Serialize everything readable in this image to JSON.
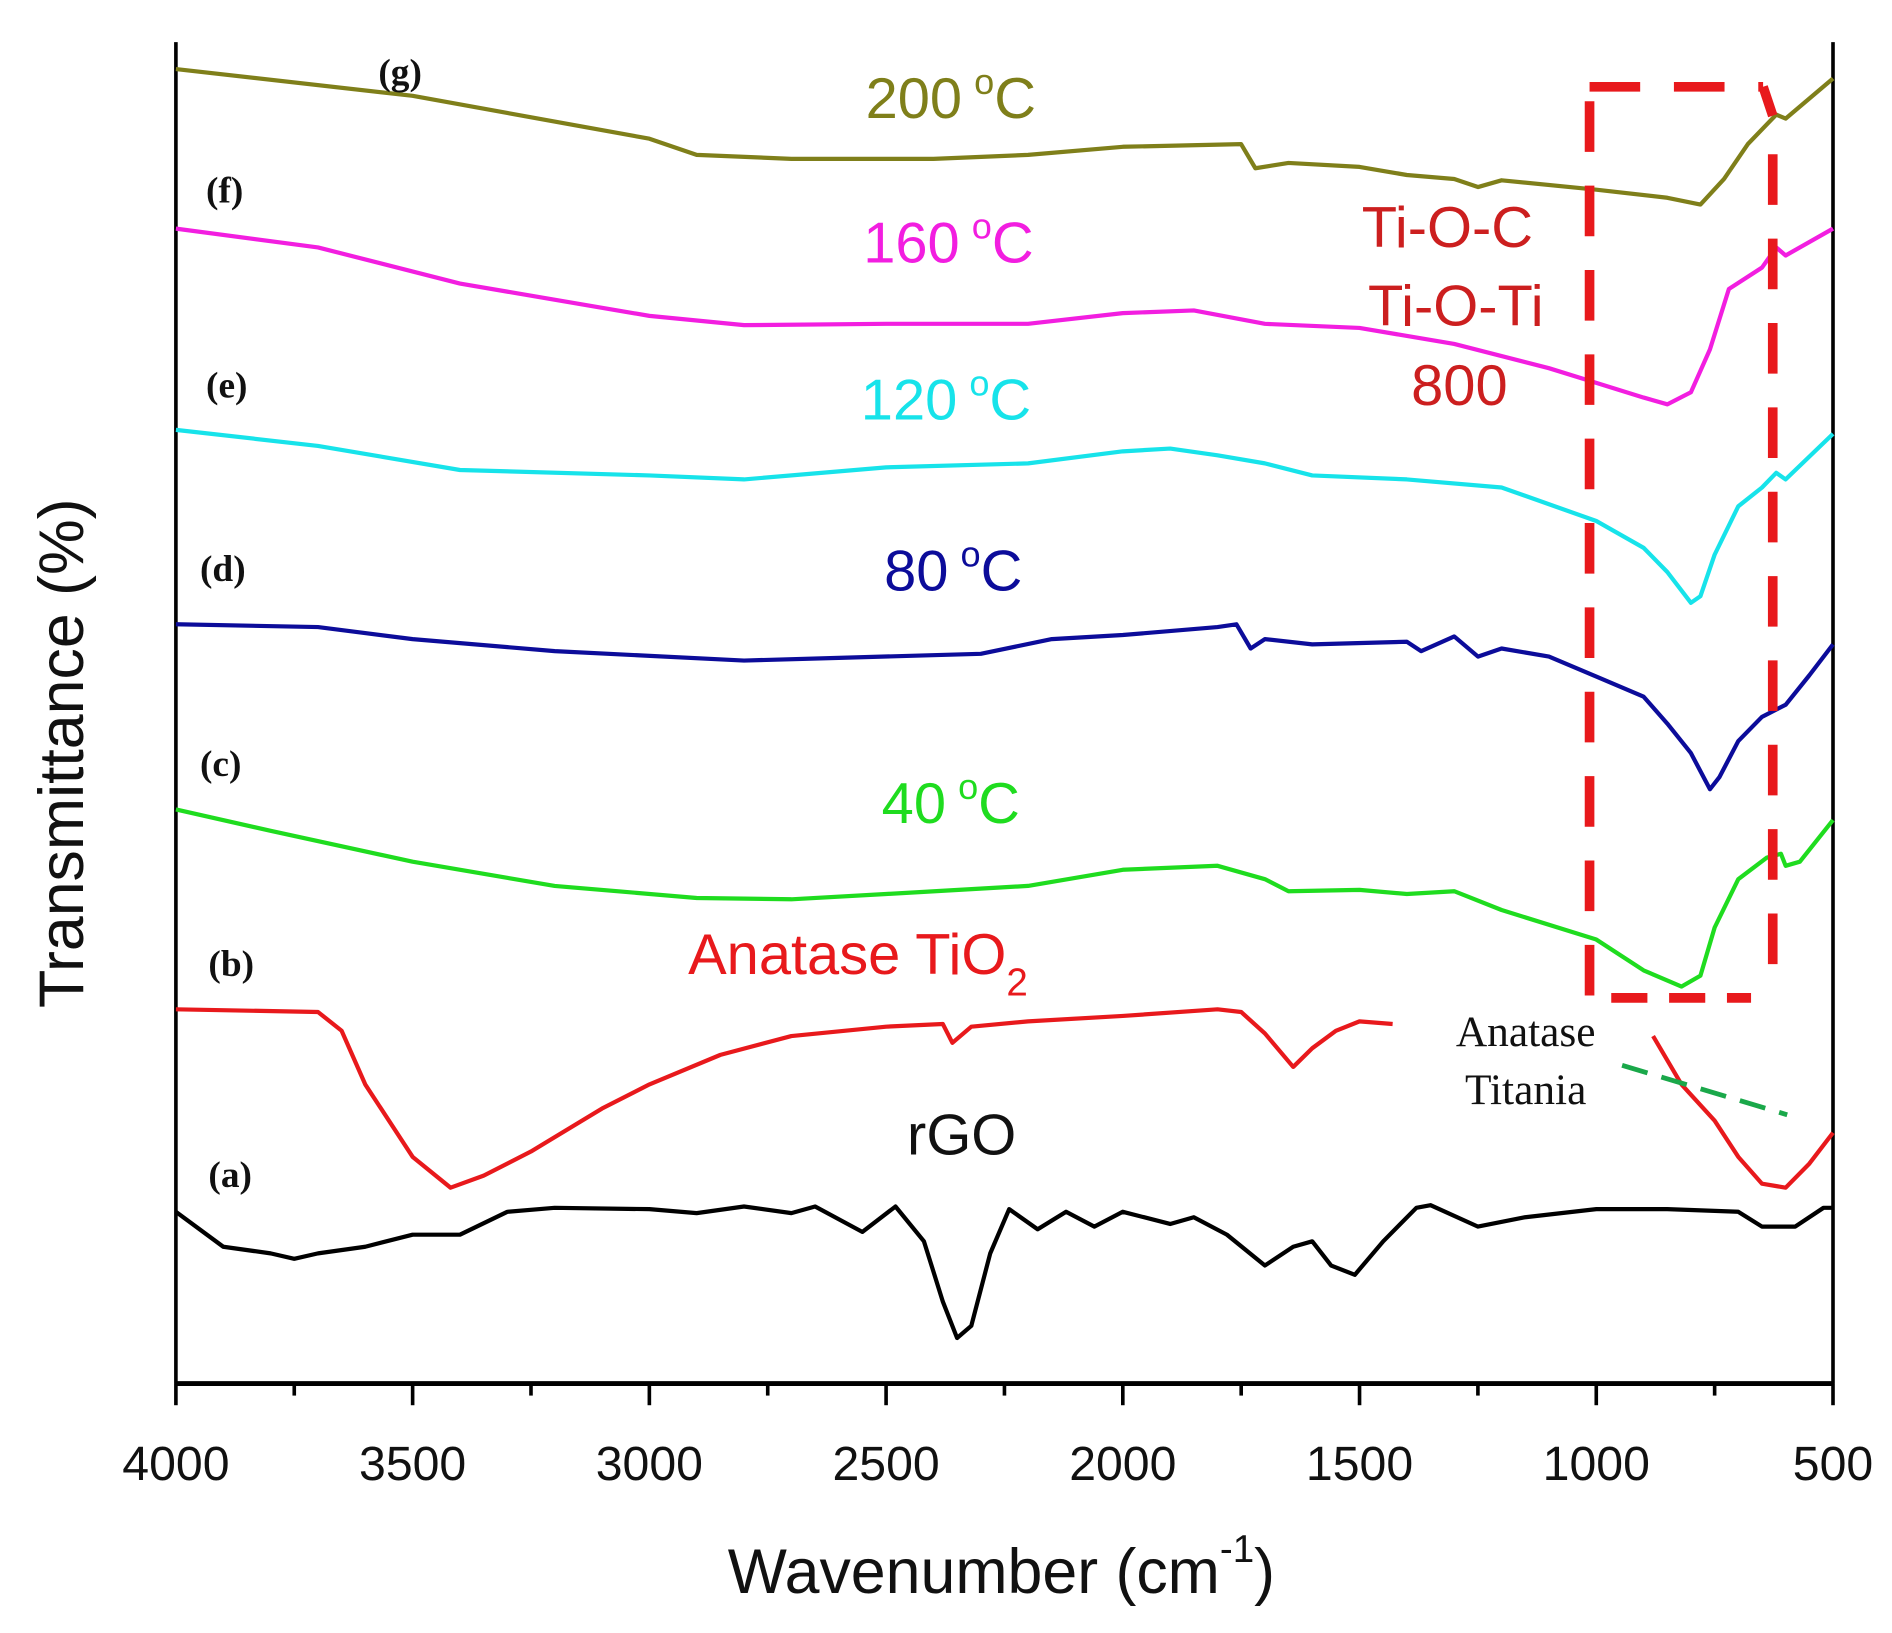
{
  "chart_data": {
    "type": "line",
    "title": "",
    "xlabel": "Wavenumber (cm-1)",
    "xlabel_main": "Wavenumber (cm",
    "xlabel_sup": "-1",
    "xlabel_close": ")",
    "ylabel": "Transmittance (%)",
    "xlim": [
      4000,
      500
    ],
    "ylim": [
      0,
      100
    ],
    "y_units": "arbitrary offset (stacked spectra)",
    "xticks": [
      "4000",
      "3500",
      "3000",
      "2500",
      "2000",
      "1500",
      "1000",
      "500"
    ],
    "grid": false,
    "series": [
      {
        "id": "a",
        "tag": "(a)",
        "name": "rGO",
        "color": "#000000",
        "points": [
          [
            4000,
            12.8
          ],
          [
            3900,
            10.2
          ],
          [
            3800,
            9.7
          ],
          [
            3750,
            9.3
          ],
          [
            3700,
            9.7
          ],
          [
            3600,
            10.2
          ],
          [
            3500,
            11.1
          ],
          [
            3400,
            11.1
          ],
          [
            3300,
            12.8
          ],
          [
            3200,
            13.1
          ],
          [
            3000,
            13.0
          ],
          [
            2900,
            12.7
          ],
          [
            2800,
            13.2
          ],
          [
            2700,
            12.7
          ],
          [
            2650,
            13.2
          ],
          [
            2550,
            11.3
          ],
          [
            2480,
            13.2
          ],
          [
            2420,
            10.6
          ],
          [
            2380,
            6.1
          ],
          [
            2350,
            3.4
          ],
          [
            2320,
            4.3
          ],
          [
            2280,
            9.7
          ],
          [
            2240,
            13.0
          ],
          [
            2180,
            11.5
          ],
          [
            2120,
            12.8
          ],
          [
            2060,
            11.7
          ],
          [
            2000,
            12.8
          ],
          [
            1900,
            11.9
          ],
          [
            1850,
            12.4
          ],
          [
            1780,
            11.1
          ],
          [
            1700,
            8.8
          ],
          [
            1640,
            10.2
          ],
          [
            1600,
            10.6
          ],
          [
            1560,
            8.8
          ],
          [
            1510,
            8.1
          ],
          [
            1450,
            10.6
          ],
          [
            1380,
            13.1
          ],
          [
            1350,
            13.3
          ],
          [
            1250,
            11.7
          ],
          [
            1150,
            12.4
          ],
          [
            1000,
            13.0
          ],
          [
            850,
            13.0
          ],
          [
            700,
            12.8
          ],
          [
            650,
            11.7
          ],
          [
            580,
            11.7
          ],
          [
            520,
            13.1
          ],
          [
            500,
            13.1
          ]
        ]
      },
      {
        "id": "b",
        "tag": "(b)",
        "name": "Anatase TiO2",
        "name_main": "Anatase TiO",
        "name_sub": "2",
        "color": "#e8191c",
        "points": [
          [
            4000,
            27.9
          ],
          [
            3700,
            27.7
          ],
          [
            3650,
            26.3
          ],
          [
            3600,
            22.3
          ],
          [
            3500,
            16.9
          ],
          [
            3420,
            14.6
          ],
          [
            3350,
            15.5
          ],
          [
            3250,
            17.3
          ],
          [
            3100,
            20.5
          ],
          [
            3000,
            22.3
          ],
          [
            2850,
            24.5
          ],
          [
            2700,
            25.9
          ],
          [
            2500,
            26.6
          ],
          [
            2380,
            26.8
          ],
          [
            2360,
            25.4
          ],
          [
            2320,
            26.6
          ],
          [
            2200,
            27.0
          ],
          [
            2000,
            27.4
          ],
          [
            1800,
            27.9
          ],
          [
            1750,
            27.7
          ],
          [
            1700,
            26.1
          ],
          [
            1640,
            23.6
          ],
          [
            1600,
            25.0
          ],
          [
            1550,
            26.3
          ],
          [
            1500,
            27.0
          ],
          [
            1430,
            26.8
          ],
          null,
          [
            880,
            25.9
          ],
          [
            820,
            22.3
          ],
          [
            750,
            19.6
          ],
          [
            700,
            16.9
          ],
          [
            650,
            14.9
          ],
          [
            600,
            14.6
          ],
          [
            550,
            16.4
          ],
          [
            500,
            18.7
          ]
        ]
      },
      {
        "id": "c",
        "tag": "(c)",
        "name": "40 °C",
        "color": "#1fdc1f",
        "points": [
          [
            4000,
            42.8
          ],
          [
            3800,
            41.2
          ],
          [
            3500,
            38.9
          ],
          [
            3200,
            37.1
          ],
          [
            2900,
            36.2
          ],
          [
            2700,
            36.1
          ],
          [
            2500,
            36.5
          ],
          [
            2200,
            37.1
          ],
          [
            2000,
            38.3
          ],
          [
            1800,
            38.6
          ],
          [
            1700,
            37.6
          ],
          [
            1650,
            36.7
          ],
          [
            1500,
            36.8
          ],
          [
            1400,
            36.5
          ],
          [
            1300,
            36.7
          ],
          [
            1200,
            35.3
          ],
          [
            1000,
            33.1
          ],
          [
            900,
            30.8
          ],
          [
            820,
            29.6
          ],
          [
            780,
            30.4
          ],
          [
            750,
            34.0
          ],
          [
            700,
            37.6
          ],
          [
            640,
            39.2
          ],
          [
            610,
            39.5
          ],
          [
            600,
            38.6
          ],
          [
            570,
            38.9
          ],
          [
            500,
            42.0
          ]
        ]
      },
      {
        "id": "d",
        "tag": "(d)",
        "name": "80 °C",
        "color": "#0c0c9a",
        "points": [
          [
            4000,
            56.6
          ],
          [
            3700,
            56.4
          ],
          [
            3500,
            55.5
          ],
          [
            3200,
            54.6
          ],
          [
            2800,
            53.9
          ],
          [
            2600,
            54.1
          ],
          [
            2300,
            54.4
          ],
          [
            2150,
            55.5
          ],
          [
            2000,
            55.8
          ],
          [
            1800,
            56.4
          ],
          [
            1760,
            56.6
          ],
          [
            1730,
            54.8
          ],
          [
            1700,
            55.5
          ],
          [
            1600,
            55.1
          ],
          [
            1400,
            55.3
          ],
          [
            1370,
            54.6
          ],
          [
            1300,
            55.7
          ],
          [
            1250,
            54.2
          ],
          [
            1200,
            54.8
          ],
          [
            1100,
            54.2
          ],
          [
            1000,
            52.7
          ],
          [
            900,
            51.2
          ],
          [
            850,
            49.2
          ],
          [
            800,
            47.0
          ],
          [
            760,
            44.3
          ],
          [
            740,
            45.2
          ],
          [
            700,
            47.9
          ],
          [
            650,
            49.7
          ],
          [
            600,
            50.6
          ],
          [
            550,
            52.8
          ],
          [
            500,
            55.1
          ]
        ]
      },
      {
        "id": "e",
        "tag": "(e)",
        "name": "120 °C",
        "color": "#17e3ea",
        "points": [
          [
            4000,
            71.1
          ],
          [
            3700,
            69.9
          ],
          [
            3400,
            68.1
          ],
          [
            3000,
            67.7
          ],
          [
            2800,
            67.4
          ],
          [
            2500,
            68.3
          ],
          [
            2200,
            68.6
          ],
          [
            2000,
            69.5
          ],
          [
            1900,
            69.7
          ],
          [
            1800,
            69.2
          ],
          [
            1700,
            68.6
          ],
          [
            1600,
            67.7
          ],
          [
            1400,
            67.4
          ],
          [
            1200,
            66.8
          ],
          [
            1000,
            64.3
          ],
          [
            900,
            62.3
          ],
          [
            850,
            60.5
          ],
          [
            800,
            58.2
          ],
          [
            780,
            58.7
          ],
          [
            750,
            61.8
          ],
          [
            700,
            65.4
          ],
          [
            650,
            66.8
          ],
          [
            620,
            67.9
          ],
          [
            600,
            67.4
          ],
          [
            500,
            70.8
          ]
        ]
      },
      {
        "id": "f",
        "tag": "(f)",
        "name": "160 °C",
        "color": "#f21ee0",
        "points": [
          [
            4000,
            86.1
          ],
          [
            3700,
            84.7
          ],
          [
            3400,
            82.0
          ],
          [
            3000,
            79.6
          ],
          [
            2800,
            78.9
          ],
          [
            2500,
            79.0
          ],
          [
            2200,
            79.0
          ],
          [
            2000,
            79.8
          ],
          [
            1850,
            80.0
          ],
          [
            1700,
            79.0
          ],
          [
            1500,
            78.7
          ],
          [
            1300,
            77.5
          ],
          [
            1100,
            75.7
          ],
          [
            1000,
            74.6
          ],
          [
            900,
            73.5
          ],
          [
            850,
            73.0
          ],
          [
            800,
            73.9
          ],
          [
            760,
            77.1
          ],
          [
            720,
            81.6
          ],
          [
            650,
            83.2
          ],
          [
            620,
            84.7
          ],
          [
            600,
            84.1
          ],
          [
            500,
            86.1
          ]
        ]
      },
      {
        "id": "g",
        "tag": "(g)",
        "name": "200 °C",
        "color": "#7f7f1a",
        "points": [
          [
            4000,
            98.0
          ],
          [
            3500,
            96.0
          ],
          [
            3000,
            92.8
          ],
          [
            2900,
            91.6
          ],
          [
            2700,
            91.3
          ],
          [
            2400,
            91.3
          ],
          [
            2200,
            91.6
          ],
          [
            2000,
            92.2
          ],
          [
            1750,
            92.4
          ],
          [
            1720,
            90.6
          ],
          [
            1650,
            91.0
          ],
          [
            1500,
            90.7
          ],
          [
            1400,
            90.1
          ],
          [
            1300,
            89.8
          ],
          [
            1250,
            89.2
          ],
          [
            1200,
            89.7
          ],
          [
            1000,
            89.0
          ],
          [
            850,
            88.4
          ],
          [
            780,
            87.9
          ],
          [
            730,
            89.8
          ],
          [
            680,
            92.4
          ],
          [
            620,
            94.6
          ],
          [
            600,
            94.3
          ],
          [
            500,
            97.3
          ]
        ]
      }
    ],
    "annotations": {
      "box_label_1": "Ti-O-C",
      "box_label_2": "Ti-O-Ti",
      "box_label_3": "800",
      "anatase_1": "Anatase",
      "anatase_2": "Titania",
      "box_range_cm1": [
        1000,
        620
      ],
      "label_color": "#e8191c",
      "guide_color": "#1aa84a"
    },
    "temp_unit": "°C",
    "temp_values": {
      "c": "40",
      "d": "80",
      "e": "120",
      "f": "160",
      "g": "200"
    }
  }
}
